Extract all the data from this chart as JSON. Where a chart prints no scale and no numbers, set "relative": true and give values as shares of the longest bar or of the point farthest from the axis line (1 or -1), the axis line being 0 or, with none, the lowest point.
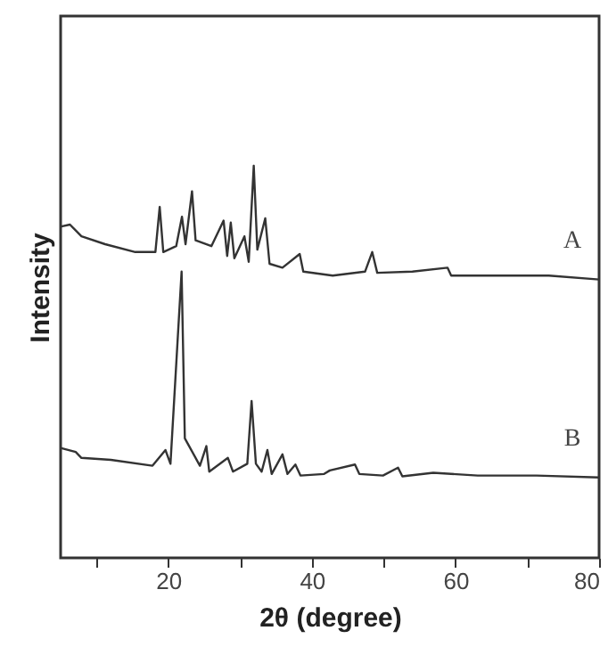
{
  "chart_data": {
    "type": "line",
    "xlabel": "2θ (degree)",
    "ylabel": "Intensity",
    "relative": true,
    "xlim": [
      5,
      80
    ],
    "xticks": [
      {
        "value": 10,
        "label": null
      },
      20,
      {
        "value": 30,
        "label": null
      },
      40,
      {
        "value": 50,
        "label": null
      },
      60,
      {
        "value": 70,
        "label": null
      },
      80
    ],
    "tick_labels": "x",
    "grid": false,
    "marker": "none",
    "line_style": "solid",
    "series": [
      {
        "name": "A",
        "color": "#333333",
        "x": [
          5.1,
          6.3,
          7.9,
          11.2,
          15.4,
          18.2,
          18.8,
          19.3,
          21.1,
          21.9,
          22.4,
          23.3,
          23.8,
          26.0,
          27.7,
          28.2,
          28.7,
          29.2,
          30.6,
          31.2,
          31.9,
          32.4,
          33.5,
          34.1,
          35.9,
          38.3,
          38.8,
          42.9,
          47.4,
          48.4,
          49.1,
          54.0,
          58.9,
          59.4,
          67.2,
          73.0,
          80.0
        ],
        "values": [
          0.845,
          0.85,
          0.82,
          0.8,
          0.78,
          0.78,
          0.895,
          0.78,
          0.795,
          0.87,
          0.8,
          0.935,
          0.81,
          0.795,
          0.86,
          0.77,
          0.855,
          0.764,
          0.82,
          0.755,
          1.0,
          0.786,
          0.866,
          0.75,
          0.74,
          0.775,
          0.73,
          0.72,
          0.73,
          0.78,
          0.727,
          0.73,
          0.74,
          0.72,
          0.72,
          0.72,
          0.71
        ]
      },
      {
        "name": "B",
        "color": "#333333",
        "x": [
          5.1,
          7.1,
          7.9,
          12.0,
          17.8,
          19.6,
          20.3,
          21.85,
          22.3,
          22.9,
          24.4,
          25.3,
          25.7,
          28.3,
          29.0,
          31.0,
          31.6,
          32.2,
          33.0,
          33.8,
          34.4,
          35.9,
          36.6,
          37.7,
          38.4,
          41.7,
          42.5,
          46.0,
          46.6,
          49.9,
          52.0,
          52.6,
          56.9,
          63.1,
          71.3,
          80.0
        ],
        "values": [
          0.28,
          0.27,
          0.255,
          0.25,
          0.235,
          0.275,
          0.24,
          0.73,
          0.305,
          0.285,
          0.235,
          0.285,
          0.22,
          0.255,
          0.22,
          0.24,
          0.4,
          0.24,
          0.22,
          0.275,
          0.214,
          0.264,
          0.214,
          0.238,
          0.21,
          0.214,
          0.223,
          0.238,
          0.214,
          0.21,
          0.23,
          0.208,
          0.217,
          0.21,
          0.21,
          0.205
        ]
      }
    ]
  }
}
